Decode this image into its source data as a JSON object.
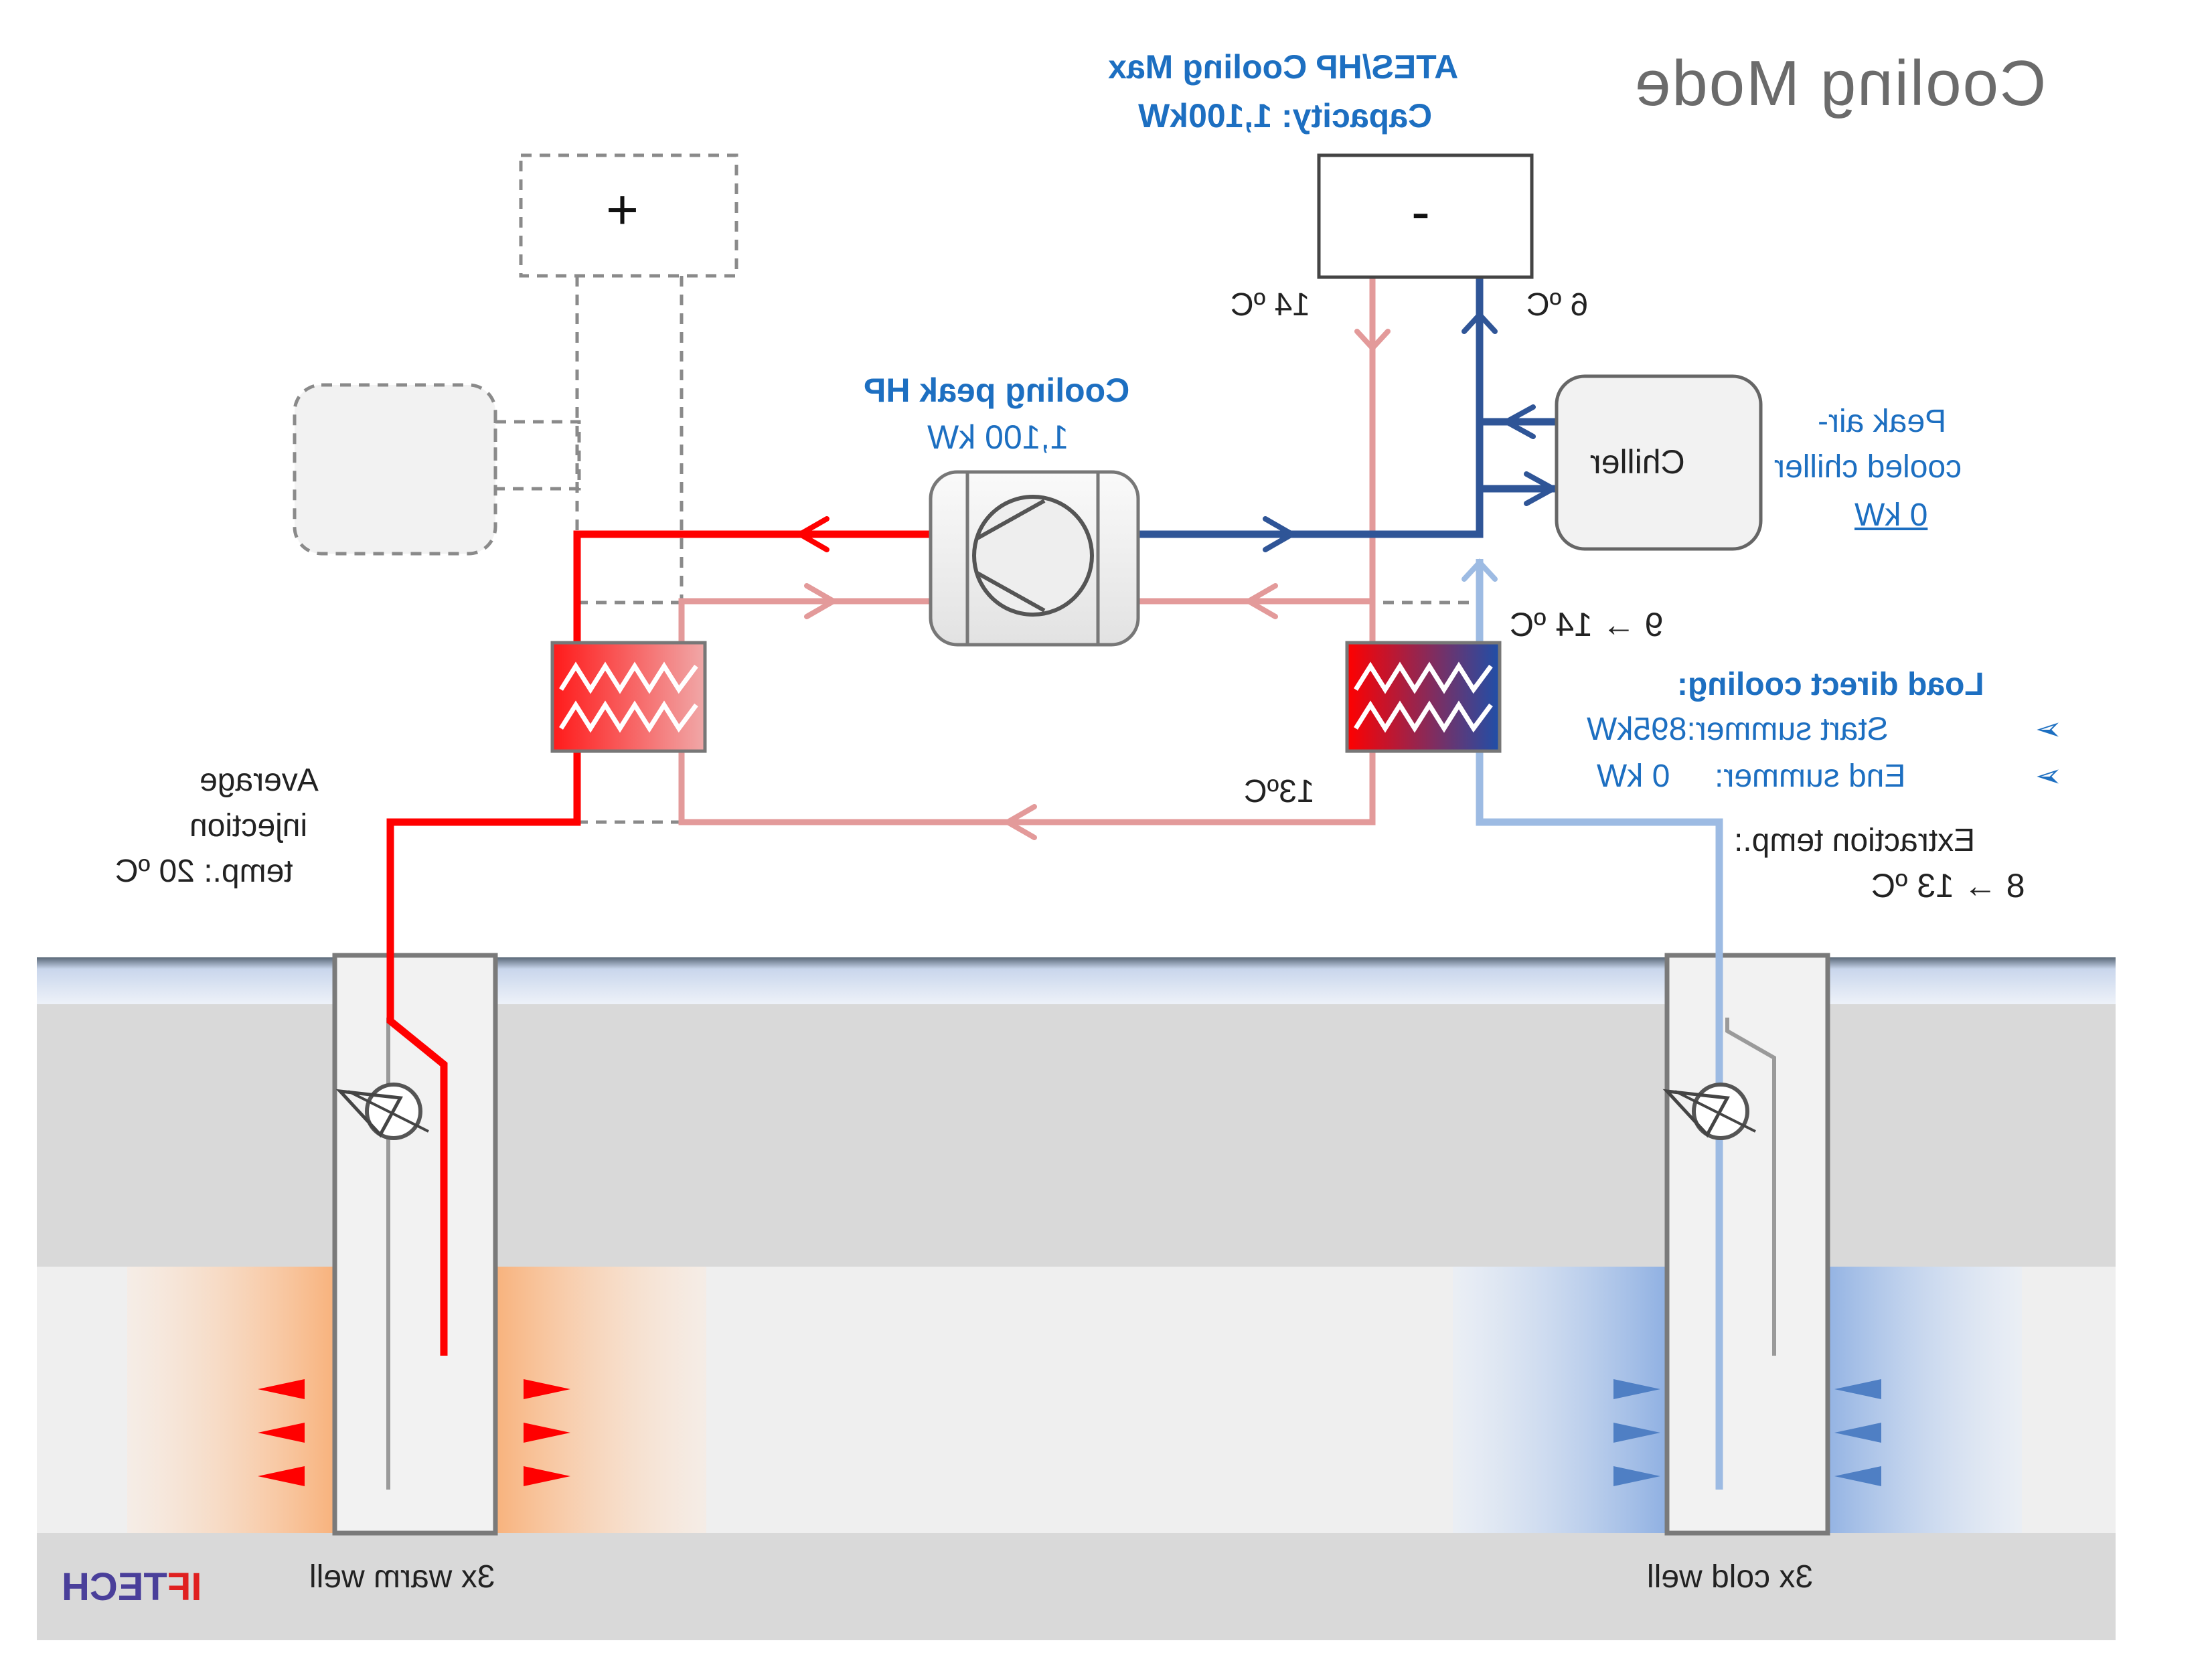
{
  "title": "Cooling Mode",
  "ates": {
    "line1": "ATES/HP Cooling Max",
    "line2": "Capacity: 1,100kW",
    "symbol": "-",
    "return_temp": "14 ºC",
    "supply_temp": "6 ºC"
  },
  "heat_demand": {
    "symbol": "+"
  },
  "peak_hp": {
    "title": "Cooling peak HP",
    "capacity": "1,100 kW"
  },
  "chiller": {
    "label": "Chiller",
    "caption_line1": "Peak air-",
    "caption_line2": "cooled chiller",
    "capacity": "0 kW"
  },
  "heat_exchanger": {
    "temp_change": "9 → 14 ºC",
    "return_temp": "13ºC"
  },
  "load_direct_cooling": {
    "title": "Load direct cooling:",
    "items": [
      {
        "bullet": "➢",
        "text": "Start summer:895kW"
      },
      {
        "bullet": "➢",
        "text": "End summer:     0 kW"
      }
    ]
  },
  "extraction": {
    "line1": "Extraction temp.:",
    "line2": "8 → 13 ºC"
  },
  "injection": {
    "line1": "Average",
    "line2": "injection",
    "line3": "temp.: 20 ºC"
  },
  "wells": {
    "warm_label": "3x warm well",
    "cold_label": "3x cold well"
  },
  "logo": {
    "part1": "IF",
    "part2": "TECH"
  },
  "colors": {
    "hot_pipe": "#ff0000",
    "warm_return_pipe": "#e39a9a",
    "cold_pipe": "#2f5597",
    "light_cold_pipe": "#9dbbe3",
    "accent_blue": "#1d6fc1",
    "title_gray": "#6b6b6b"
  }
}
